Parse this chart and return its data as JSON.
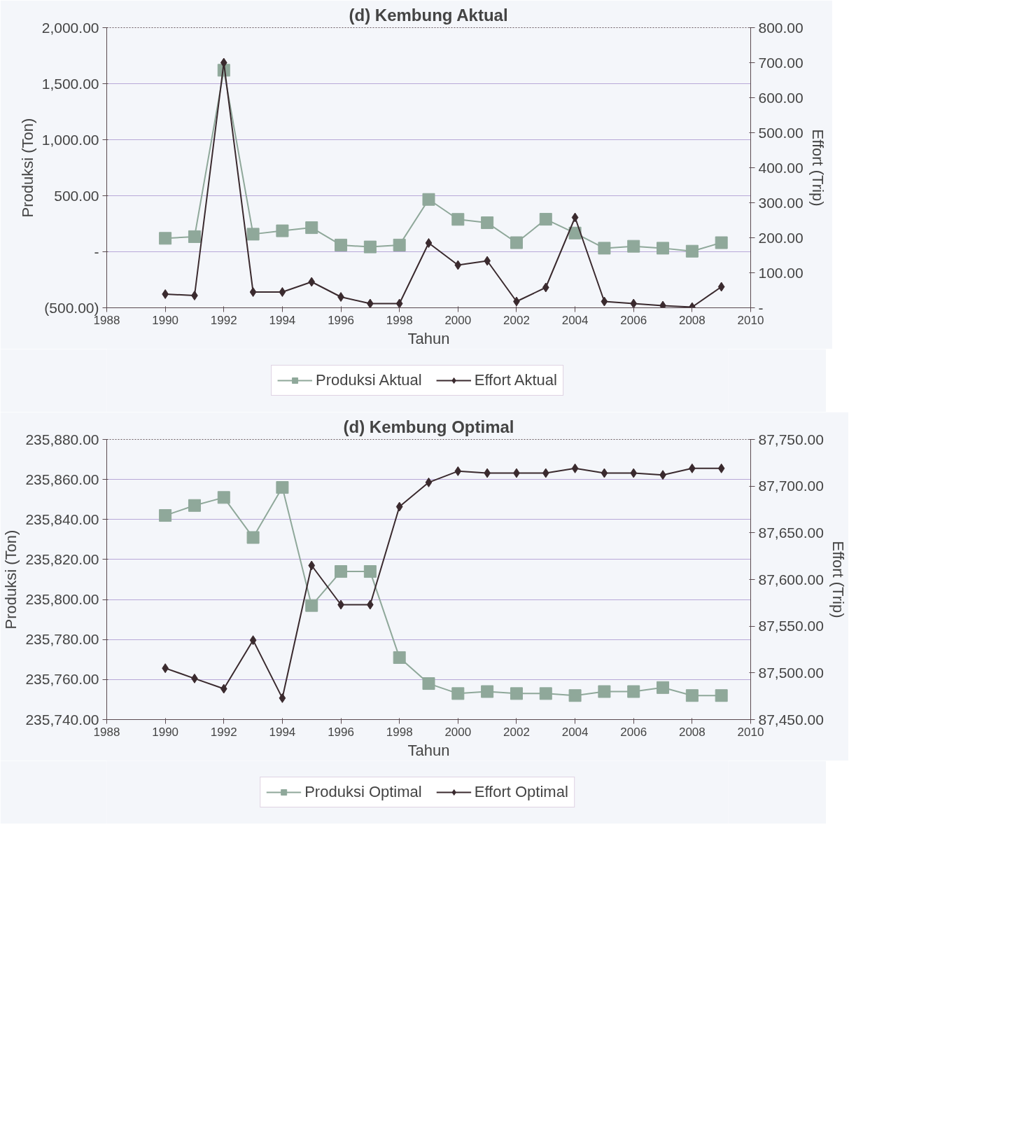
{
  "chart_data": [
    {
      "type": "line",
      "title": "(d) Kembung Aktual",
      "xlabel": "Tahun",
      "ylabel": "Produksi (Ton)",
      "y2label": "Effort (Trip)",
      "x": [
        1990,
        1991,
        1992,
        1993,
        1994,
        1995,
        1996,
        1997,
        1998,
        1999,
        2000,
        2001,
        2002,
        2003,
        2004,
        2005,
        2006,
        2007,
        2008,
        2009
      ],
      "series": [
        {
          "name": "Produksi Aktual",
          "color": "#8fa89a",
          "marker": "square",
          "values": [
            120,
            135,
            1620,
            157,
            187,
            215,
            60,
            43,
            60,
            467,
            289,
            259,
            81,
            290,
            167,
            32,
            49,
            32,
            5,
            81
          ]
        },
        {
          "name": "Effort Aktual",
          "color": "#3a2a2e",
          "marker": "diamond",
          "axis": "y2",
          "values": [
            39,
            35,
            700,
            45,
            45,
            74,
            31,
            12,
            12,
            185,
            122,
            134,
            18,
            58,
            258,
            18,
            12,
            6,
            2,
            60
          ]
        }
      ],
      "xlim": [
        1988,
        2010
      ],
      "xticks": [
        1988,
        1990,
        1992,
        1994,
        1996,
        1998,
        2000,
        2002,
        2004,
        2006,
        2008,
        2010
      ],
      "ylim": [
        -500,
        2000
      ],
      "yticks": [
        {
          "value": -500,
          "label": "(500.00)"
        },
        {
          "value": 0,
          "label": "-"
        },
        {
          "value": 500,
          "label": "500.00"
        },
        {
          "value": 1000,
          "label": "1,000.00"
        },
        {
          "value": 1500,
          "label": "1,500.00"
        },
        {
          "value": 2000,
          "label": "2,000.00"
        }
      ],
      "y2lim": [
        0,
        800
      ],
      "y2ticks": [
        {
          "value": 0,
          "label": "-"
        },
        {
          "value": 100,
          "label": "100.00"
        },
        {
          "value": 200,
          "label": "200.00"
        },
        {
          "value": 300,
          "label": "300.00"
        },
        {
          "value": 400,
          "label": "400.00"
        },
        {
          "value": 500,
          "label": "500.00"
        },
        {
          "value": 600,
          "label": "600.00"
        },
        {
          "value": 700,
          "label": "700.00"
        },
        {
          "value": 800,
          "label": "800.00"
        }
      ],
      "grid": "y",
      "legend": "bottom"
    },
    {
      "type": "line",
      "title": "(d) Kembung Optimal",
      "xlabel": "Tahun",
      "ylabel": "Produksi (Ton)",
      "y2label": "Effort (Trip)",
      "x": [
        1990,
        1991,
        1992,
        1993,
        1994,
        1995,
        1996,
        1997,
        1998,
        1999,
        2000,
        2001,
        2002,
        2003,
        2004,
        2005,
        2006,
        2007,
        2008,
        2009
      ],
      "series": [
        {
          "name": "Produksi Optimal",
          "color": "#8fa89a",
          "marker": "square",
          "values": [
            235842,
            235847,
            235851,
            235831,
            235856,
            235797,
            235814,
            235814,
            235771,
            235758,
            235753,
            235754,
            235753,
            235753,
            235752,
            235754,
            235754,
            235756,
            235752,
            235752
          ]
        },
        {
          "name": "Effort Optimal",
          "color": "#3a2a2e",
          "marker": "diamond",
          "axis": "y2",
          "values": [
            87505,
            87494,
            87483,
            87535,
            87473,
            87615,
            87573,
            87573,
            87678,
            87704,
            87716,
            87714,
            87714,
            87714,
            87719,
            87714,
            87714,
            87712,
            87719,
            87719
          ]
        }
      ],
      "xlim": [
        1988,
        2010
      ],
      "xticks": [
        1988,
        1990,
        1992,
        1994,
        1996,
        1998,
        2000,
        2002,
        2004,
        2006,
        2008,
        2010
      ],
      "ylim": [
        235740,
        235880
      ],
      "yticks": [
        {
          "value": 235740,
          "label": "235,740.00"
        },
        {
          "value": 235760,
          "label": "235,760.00"
        },
        {
          "value": 235780,
          "label": "235,780.00"
        },
        {
          "value": 235800,
          "label": "235,800.00"
        },
        {
          "value": 235820,
          "label": "235,820.00"
        },
        {
          "value": 235840,
          "label": "235,840.00"
        },
        {
          "value": 235860,
          "label": "235,860.00"
        },
        {
          "value": 235880,
          "label": "235,880.00"
        }
      ],
      "y2lim": [
        87450,
        87750
      ],
      "y2ticks": [
        {
          "value": 87450,
          "label": "87,450.00"
        },
        {
          "value": 87500,
          "label": "87,500.00"
        },
        {
          "value": 87550,
          "label": "87,550.00"
        },
        {
          "value": 87600,
          "label": "87,600.00"
        },
        {
          "value": 87650,
          "label": "87,650.00"
        },
        {
          "value": 87700,
          "label": "87,700.00"
        },
        {
          "value": 87750,
          "label": "87,750.00"
        }
      ],
      "grid": "y",
      "legend": "bottom"
    }
  ]
}
